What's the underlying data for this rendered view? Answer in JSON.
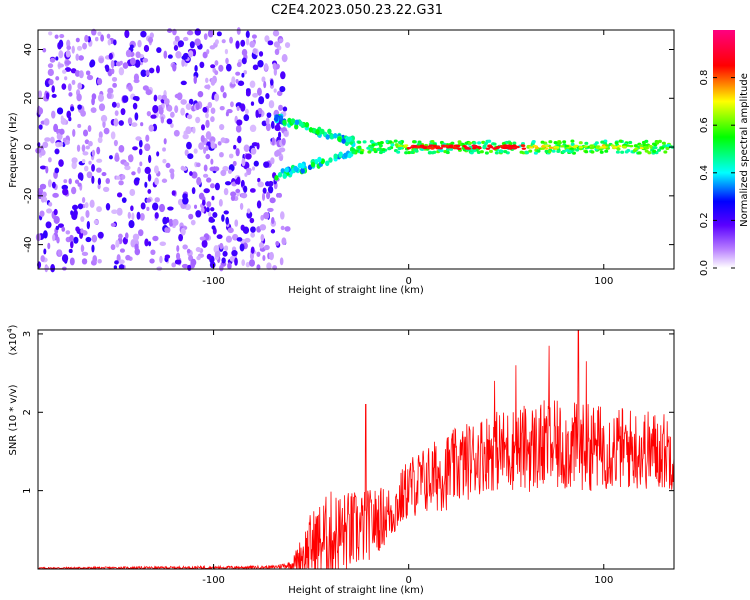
{
  "title": "C2E4.2023.050.23.22.G31",
  "chart_data": [
    {
      "type": "heatmap",
      "xlabel": "Height of straight line (km)",
      "ylabel": "Frequency (Hz)",
      "xlim": [
        -190,
        136
      ],
      "ylim": [
        -50,
        48
      ],
      "x_ticks": [
        -100,
        0,
        100
      ],
      "y_ticks": [
        -40,
        -20,
        0,
        20,
        40
      ],
      "colorbar": {
        "label": "Normalized spectral amplitude",
        "range": [
          0.0,
          1.0
        ],
        "ticks": [
          "0.0",
          "0.2",
          "0.4",
          "0.6",
          "0.8"
        ],
        "colors": [
          "#ffffff",
          "#7d00ff",
          "#0000ff",
          "#00ffff",
          "#00ff00",
          "#ffff00",
          "#ff0000",
          "#ff0080"
        ]
      },
      "description_regions": [
        {
          "x_range": [
            -190,
            -62
          ],
          "y_range": [
            -50,
            48
          ],
          "amplitude": 0.1
        },
        {
          "x_range": [
            -70,
            -30
          ],
          "y_range": [
            -10,
            15
          ],
          "amplitude": 0.35
        },
        {
          "x_range": [
            -30,
            136
          ],
          "y_range": [
            -3,
            3
          ],
          "amplitude": 0.55
        },
        {
          "x_range": [
            -5,
            60
          ],
          "y_range": [
            -1,
            1
          ],
          "amplitude": 0.9
        }
      ]
    },
    {
      "type": "line",
      "xlabel": "Height of straight line (km)",
      "ylabel": "SNR (10 * v/v)",
      "y_multiplier": "(x10",
      "y_multiplier_exp": "4",
      "y_multiplier_close": ")",
      "xlim": [
        -190,
        136
      ],
      "ylim": [
        0,
        3.05
      ],
      "x_ticks": [
        -100,
        0,
        100
      ],
      "y_ticks": [
        1,
        2,
        3
      ],
      "series": [
        {
          "color": "#ff0000",
          "envelope": [
            {
              "x": -190,
              "base": 0.01,
              "spread": 0.01
            },
            {
              "x": -70,
              "base": 0.02,
              "spread": 0.02
            },
            {
              "x": -60,
              "base": 0.05,
              "spread": 0.05
            },
            {
              "x": -50,
              "base": 0.25,
              "spread": 0.45
            },
            {
              "x": -40,
              "base": 0.35,
              "spread": 0.6
            },
            {
              "x": -25,
              "base": 0.45,
              "spread": 0.5
            },
            {
              "x": -8,
              "base": 0.7,
              "spread": 0.35
            },
            {
              "x": 0,
              "base": 1.0,
              "spread": 0.4
            },
            {
              "x": 20,
              "base": 1.2,
              "spread": 0.5
            },
            {
              "x": 40,
              "base": 1.45,
              "spread": 0.5
            },
            {
              "x": 70,
              "base": 1.5,
              "spread": 0.6
            },
            {
              "x": 100,
              "base": 1.5,
              "spread": 0.55
            },
            {
              "x": 136,
              "base": 1.45,
              "spread": 0.5
            }
          ],
          "peaks": [
            {
              "x": -22,
              "y": 2.1
            },
            {
              "x": 72,
              "y": 2.85
            },
            {
              "x": 87,
              "y": 3.04
            },
            {
              "x": 91,
              "y": 2.65
            },
            {
              "x": 55,
              "y": 2.6
            },
            {
              "x": 44,
              "y": 2.4
            }
          ]
        }
      ]
    }
  ]
}
